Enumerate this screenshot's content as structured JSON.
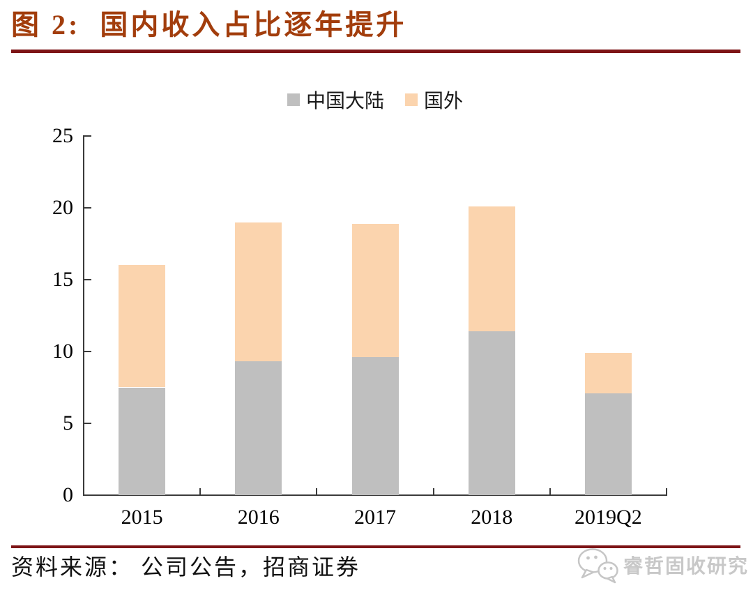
{
  "figure": {
    "title": "图 2:  国内收入占比逐年提升",
    "source_label": "资料来源： 公司公告，招商证券",
    "watermark_text": "睿哲固收研究"
  },
  "colors": {
    "title_text": "#A23D0C",
    "rule": "#7D1416",
    "axis": "#3A3A3A",
    "mainland_gray": "#BFBFBF",
    "overseas_peach": "#FBD4AE",
    "watermark_gray": "#C8C8C8"
  },
  "chart_data": {
    "type": "bar",
    "stacked": true,
    "categories": [
      "2015",
      "2016",
      "2017",
      "2018",
      "2019Q2"
    ],
    "series": [
      {
        "name": "中国大陆",
        "color": "#BFBFBF",
        "values": [
          7.5,
          9.3,
          9.6,
          11.4,
          7.1
        ]
      },
      {
        "name": "国外",
        "color": "#FBD4AE",
        "values": [
          8.5,
          9.7,
          9.3,
          8.7,
          2.8
        ]
      }
    ],
    "totals": [
      16.0,
      19.0,
      18.9,
      20.1,
      9.9
    ],
    "title": "",
    "xlabel": "",
    "ylabel": "",
    "ylim": [
      0,
      25
    ],
    "yticks": [
      0,
      5,
      10,
      15,
      20,
      25
    ],
    "legend_position": "top-center",
    "grid": false
  }
}
